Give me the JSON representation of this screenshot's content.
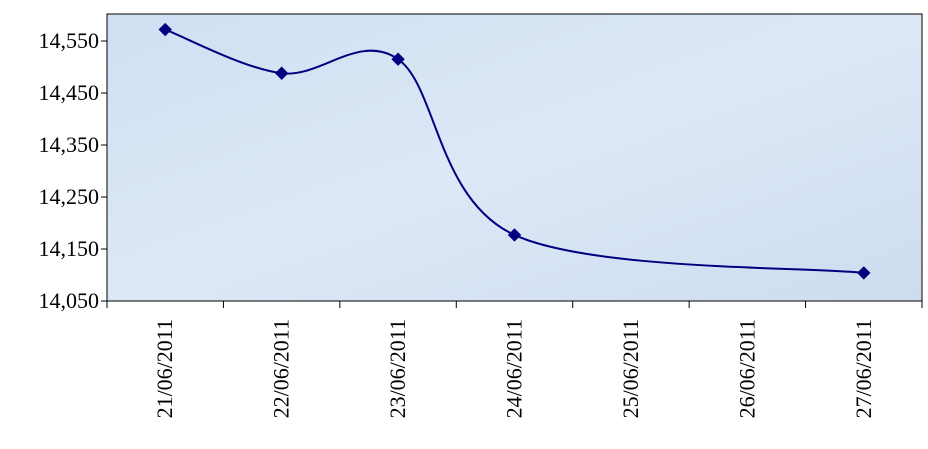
{
  "chart_data": {
    "type": "line",
    "title": "",
    "xlabel": "",
    "ylabel": "",
    "categories": [
      "21/06/2011",
      "22/06/2011",
      "23/06/2011",
      "24/06/2011",
      "25/06/2011",
      "26/06/2011",
      "27/06/2011"
    ],
    "y_ticks": [
      "14,550",
      "14,450",
      "14,350",
      "14,250",
      "14,150",
      "14,050"
    ],
    "y_tick_values": [
      14550,
      14450,
      14350,
      14250,
      14150,
      14050
    ],
    "ylim": [
      14050,
      14550
    ],
    "series": [
      {
        "points": [
          {
            "x": "21/06/2011",
            "y": 14572
          },
          {
            "x": "22/06/2011",
            "y": 14488
          },
          {
            "x": "23/06/2011",
            "y": 14515
          },
          {
            "x": "24/06/2011",
            "y": 14177
          },
          {
            "x": "27/06/2011",
            "y": 14104
          }
        ]
      }
    ],
    "grid": false,
    "legend": "none",
    "colors": {
      "line": "#000080",
      "marker": "#000080",
      "plot_background": "#d6e4f4",
      "axis": "#000000"
    }
  }
}
